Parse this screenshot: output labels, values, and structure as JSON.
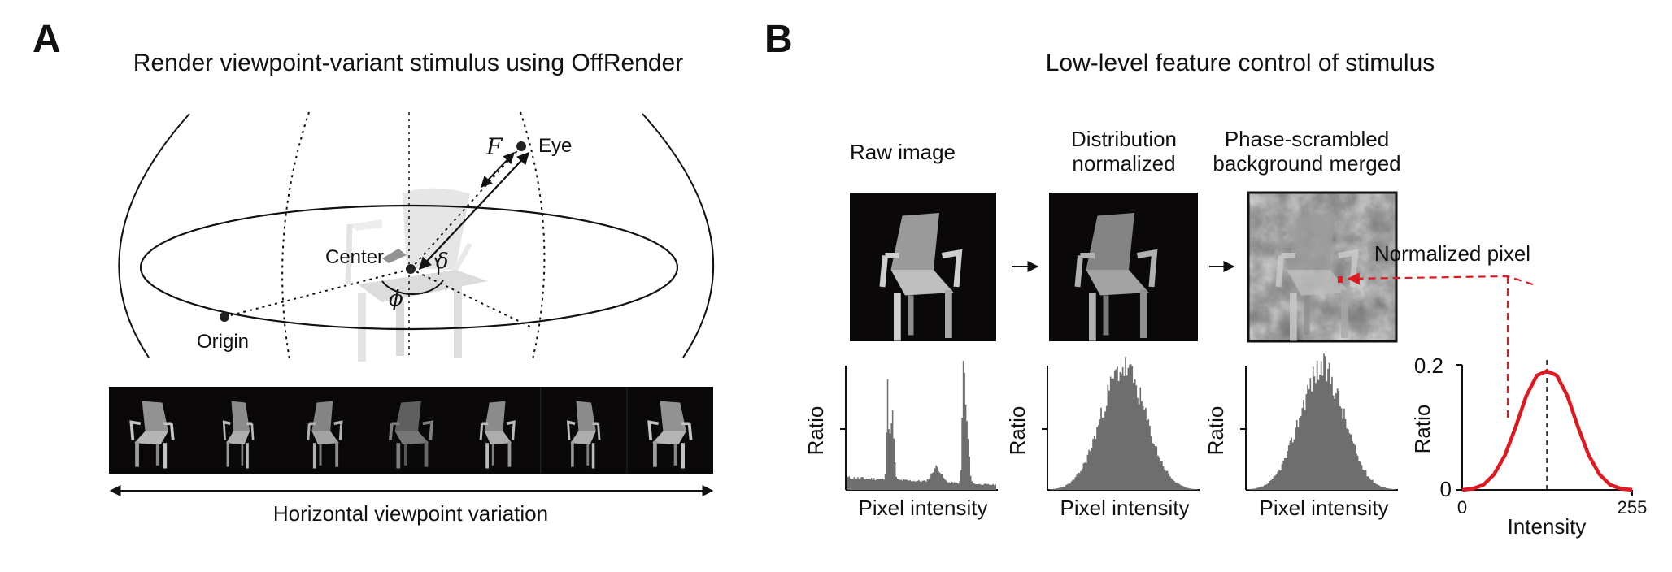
{
  "panel_a": {
    "letter": "A",
    "title": "Render viewpoint-variant stimulus using OffRender",
    "labels": {
      "eye": "Eye",
      "center": "Center",
      "origin": "Origin",
      "f": "F",
      "delta": "δ",
      "phi": "ϕ"
    },
    "strip_caption": "Horizontal viewpoint variation",
    "num_views": 7
  },
  "panel_b": {
    "letter": "B",
    "title": "Low-level feature control of stimulus",
    "steps": [
      {
        "title_lines": [
          "Raw image"
        ],
        "hist_ylabel": "Ratio",
        "hist_xlabel": "Pixel intensity"
      },
      {
        "title_lines": [
          "Distribution",
          "normalized"
        ],
        "hist_ylabel": "Ratio",
        "hist_xlabel": "Pixel intensity"
      },
      {
        "title_lines": [
          "Phase-scrambled",
          "background merged"
        ],
        "hist_ylabel": "Ratio",
        "hist_xlabel": "Pixel intensity"
      }
    ],
    "normalized_pixel_label": "Normalized pixel"
  },
  "colors": {
    "curve": "#dd1a22",
    "hist_fill": "#6e6e6e",
    "dark_bg": "#0a0808"
  },
  "chart_data": {
    "type": "line",
    "title": "",
    "xlabel": "Intensity",
    "ylabel": "Ratio",
    "xlim": [
      0,
      255
    ],
    "ylim": [
      0,
      0.2
    ],
    "x_ticks": [
      "0",
      "255"
    ],
    "y_ticks": [
      "0",
      "0.2"
    ],
    "series": [
      {
        "x": [
          0,
          16,
          32,
          48,
          64,
          80,
          96,
          112,
          127,
          142,
          158,
          174,
          190,
          206,
          222,
          238,
          255
        ],
        "values": [
          0.0,
          0.002,
          0.008,
          0.025,
          0.055,
          0.1,
          0.15,
          0.183,
          0.19,
          0.183,
          0.15,
          0.1,
          0.055,
          0.025,
          0.008,
          0.002,
          0.0
        ]
      }
    ],
    "annotations": [
      {
        "type": "vline",
        "x": 127,
        "style": "dashed"
      }
    ],
    "grid": false
  }
}
